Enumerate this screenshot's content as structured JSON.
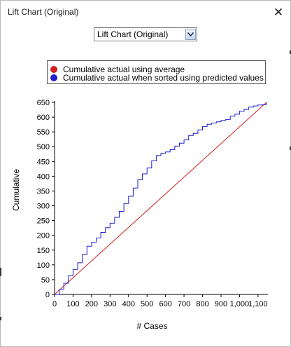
{
  "window": {
    "title": "Lift Chart (Original)",
    "close_glyph": "✕"
  },
  "selector": {
    "value": "Lift Chart (Original)"
  },
  "colors": {
    "average": "#d21f1f",
    "predicted": "#1f1fd2",
    "axis": "#000000"
  },
  "chart_data": {
    "type": "line",
    "xlabel": "# Cases",
    "ylabel": "Cumulative",
    "xlim": [
      0,
      1146
    ],
    "ylim": [
      0,
      650
    ],
    "x_ticks": [
      0,
      100,
      200,
      300,
      400,
      500,
      600,
      700,
      800,
      900,
      1000,
      1100
    ],
    "x_tick_labels": [
      "0",
      "100",
      "200",
      "300",
      "400",
      "500",
      "600",
      "700",
      "800",
      "900",
      "1,000",
      "1,100"
    ],
    "y_ticks": [
      0,
      50,
      100,
      150,
      200,
      250,
      300,
      350,
      400,
      450,
      500,
      550,
      600,
      650
    ],
    "y_tick_labels": [
      "0",
      "50",
      "100",
      "150",
      "200",
      "250",
      "300",
      "350",
      "400",
      "450",
      "500",
      "550",
      "600",
      "650"
    ],
    "legend_placement": "top",
    "series": [
      {
        "name": "Cumulative actual using average",
        "x": [
          0,
          1146
        ],
        "y": [
          0,
          650
        ]
      },
      {
        "name": "Cumulative actual when sorted using predicted values",
        "x": [
          0,
          25,
          50,
          75,
          100,
          125,
          150,
          175,
          200,
          225,
          250,
          275,
          300,
          325,
          350,
          375,
          400,
          425,
          450,
          475,
          500,
          525,
          550,
          575,
          600,
          625,
          650,
          675,
          700,
          725,
          750,
          775,
          800,
          825,
          850,
          875,
          900,
          925,
          950,
          975,
          1000,
          1025,
          1050,
          1075,
          1100,
          1125,
          1146
        ],
        "y": [
          0,
          17,
          38,
          63,
          85,
          107,
          135,
          163,
          176,
          191,
          210,
          226,
          241,
          261,
          281,
          308,
          332,
          360,
          388,
          408,
          428,
          452,
          470,
          478,
          482,
          490,
          502,
          512,
          523,
          538,
          545,
          557,
          568,
          576,
          580,
          584,
          589,
          592,
          603,
          610,
          620,
          626,
          634,
          638,
          641,
          642,
          650
        ]
      }
    ]
  }
}
